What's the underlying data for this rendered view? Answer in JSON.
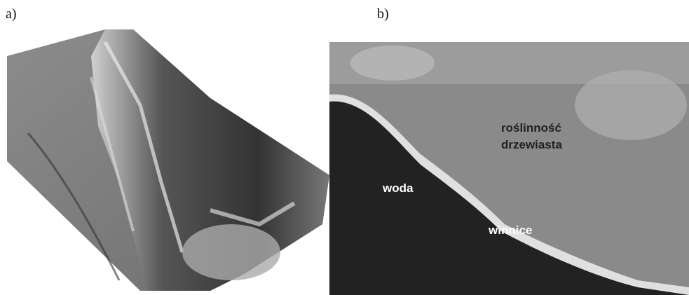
{
  "panels": [
    {
      "label": "a)"
    },
    {
      "label": "b)",
      "annotations": {
        "vegetation": [
          "roślinność",
          "drzewiasta"
        ],
        "water": "woda",
        "vineyards": "winnice"
      }
    }
  ]
}
